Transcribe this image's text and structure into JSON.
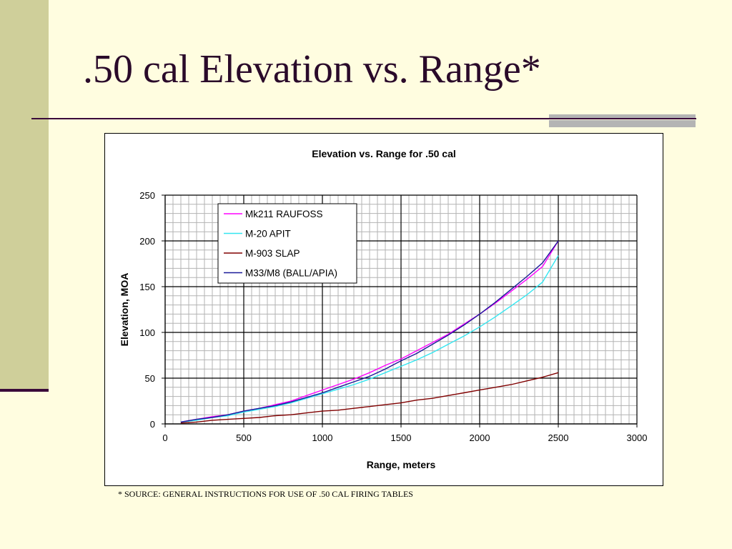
{
  "slide": {
    "title": ".50 cal Elevation vs. Range*",
    "source_note": "* SOURCE: GENERAL INSTRUCTIONS FOR USE OF .50 CAL FIRING TABLES"
  },
  "colors": {
    "background": "#fffde0",
    "sidebar": "#cfcf9a",
    "title_text": "#2a0a2a"
  },
  "chart_data": {
    "type": "line",
    "title": "Elevation vs. Range for .50 cal",
    "xlabel": "Range, meters",
    "ylabel": "Elevation, MOA",
    "xlim": [
      0,
      3000
    ],
    "ylim": [
      0,
      250
    ],
    "x_ticks": [
      0,
      500,
      1000,
      1500,
      2000,
      2500,
      3000
    ],
    "y_ticks": [
      0,
      50,
      100,
      150,
      200,
      250
    ],
    "grid": true,
    "legend_position": "top-left inside plot",
    "series": [
      {
        "name": "Mk211 RAUFOSS",
        "color": "#ff00ff",
        "x": [
          100,
          200,
          300,
          400,
          500,
          600,
          700,
          800,
          900,
          1000,
          1100,
          1200,
          1300,
          1400,
          1500,
          1600,
          1700,
          1800,
          1900,
          2000,
          2100,
          2200,
          2300,
          2400,
          2500
        ],
        "y": [
          2,
          5,
          8,
          10,
          14,
          17,
          21,
          25,
          31,
          37,
          43,
          49,
          56,
          64,
          71,
          80,
          89,
          98,
          109,
          120,
          132,
          145,
          158,
          172,
          200
        ]
      },
      {
        "name": "M-20 APIT",
        "color": "#33e6f0",
        "x": [
          100,
          200,
          300,
          400,
          500,
          600,
          700,
          800,
          900,
          1000,
          1100,
          1200,
          1300,
          1400,
          1500,
          1600,
          1700,
          1800,
          1900,
          2000,
          2100,
          2200,
          2300,
          2400,
          2500
        ],
        "y": [
          2,
          4,
          7,
          9,
          13,
          16,
          19,
          23,
          28,
          33,
          38,
          43,
          49,
          56,
          63,
          70,
          78,
          87,
          96,
          106,
          117,
          129,
          141,
          155,
          184
        ]
      },
      {
        "name": "M-903 SLAP",
        "color": "#800000",
        "x": [
          100,
          200,
          300,
          400,
          500,
          600,
          700,
          800,
          900,
          1000,
          1100,
          1200,
          1300,
          1400,
          1500,
          1600,
          1700,
          1800,
          1900,
          2000,
          2100,
          2200,
          2300,
          2400,
          2500
        ],
        "y": [
          1,
          2,
          4,
          5,
          6,
          7,
          9,
          10,
          12,
          14,
          15,
          17,
          19,
          21,
          23,
          26,
          28,
          31,
          34,
          37,
          40,
          43,
          47,
          51,
          56
        ]
      },
      {
        "name": "M33/M8 (BALL/APIA)",
        "color": "#1a1a99",
        "x": [
          100,
          200,
          300,
          400,
          500,
          600,
          700,
          800,
          900,
          1000,
          1100,
          1200,
          1300,
          1400,
          1500,
          1600,
          1700,
          1800,
          1900,
          2000,
          2100,
          2200,
          2300,
          2400,
          2500
        ],
        "y": [
          2,
          5,
          7,
          10,
          14,
          17,
          20,
          24,
          29,
          34,
          40,
          46,
          52,
          60,
          69,
          77,
          87,
          97,
          108,
          120,
          133,
          147,
          161,
          176,
          200
        ]
      }
    ]
  }
}
